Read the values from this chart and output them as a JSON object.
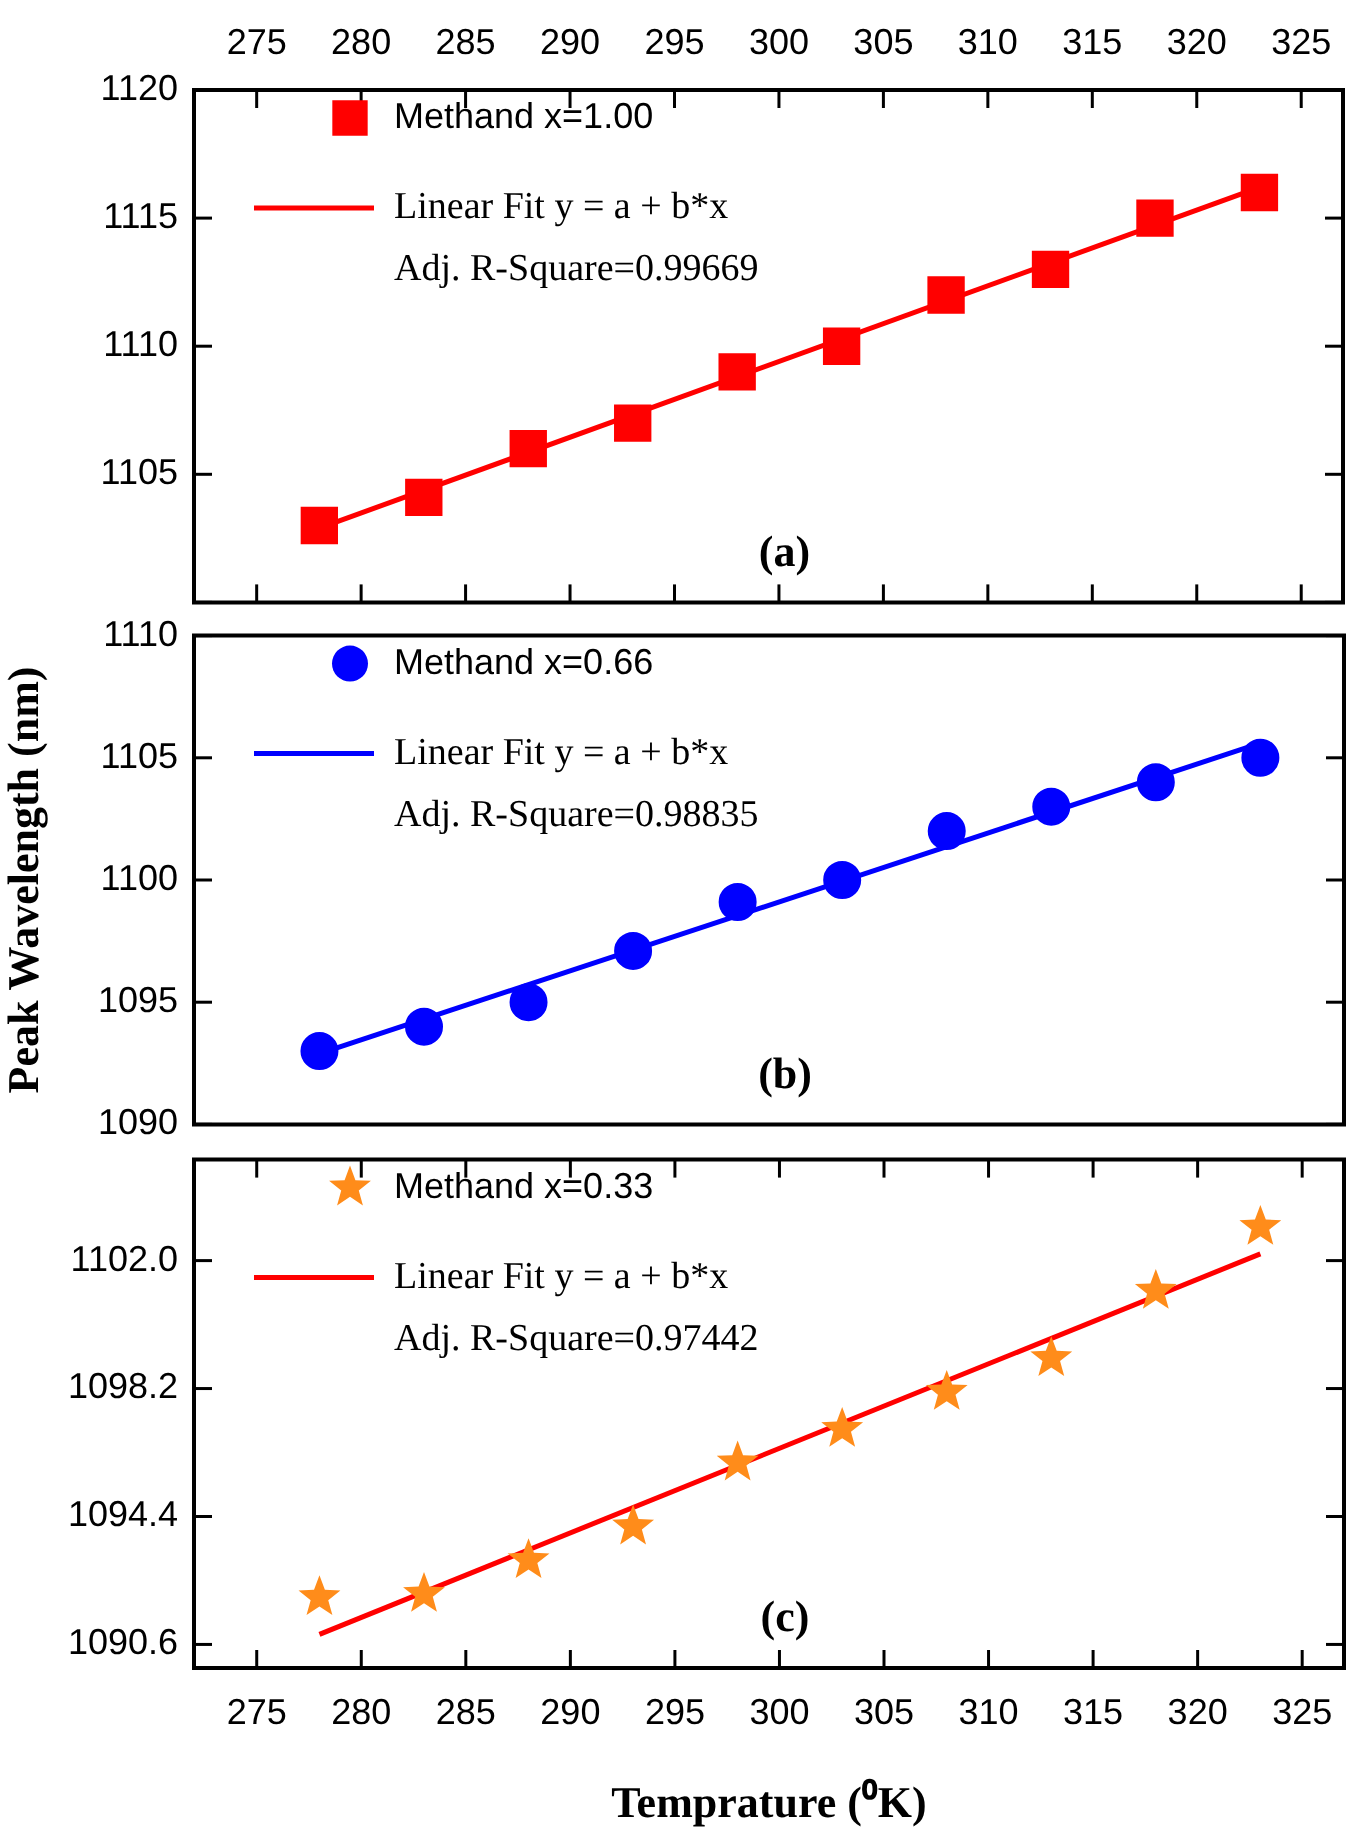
{
  "chart_data": [
    {
      "type": "scatter",
      "legend": "top left",
      "tick_labels": "y",
      "xlim": [
        272,
        327
      ],
      "x2lim": [
        272,
        327
      ],
      "x2ticks": [
        275,
        280,
        285,
        290,
        295,
        300,
        305,
        310,
        315,
        320,
        325
      ],
      "ylim": [
        1100,
        1120
      ],
      "yticks": [
        {
          "value": 1100,
          "label": null
        },
        1105,
        1110,
        1115,
        1120
      ],
      "series": [
        {
          "name": "Methand x=1.00",
          "type": "scatter",
          "marker": "square",
          "color": "#ff0000",
          "x": [
            278,
            283,
            288,
            293,
            298,
            303,
            308,
            313,
            318,
            323
          ],
          "values": [
            1103,
            1104.1,
            1106,
            1107,
            1109,
            1110,
            1112,
            1113,
            1115,
            1116
          ]
        },
        {
          "name": "Linear Fit y = a + b*x",
          "type": "line",
          "marker": "none",
          "color": "#ff0000",
          "x": [
            278,
            323
          ],
          "values": [
            1102.9,
            1116.2
          ]
        }
      ],
      "annotations": [
        "Adj. R-Square=0.99669",
        "(a)"
      ]
    },
    {
      "type": "scatter",
      "legend": "top left",
      "tick_labels": "y",
      "ylabel": "Peak Wavelength (nm)",
      "xlim": [
        272,
        327
      ],
      "ylim": [
        1090,
        1110
      ],
      "yticks": [
        1090,
        1095,
        1100,
        1105,
        1110
      ],
      "series": [
        {
          "name": "Methand x=0.66",
          "type": "scatter",
          "marker": "circle",
          "color": "#0000ff",
          "x": [
            278,
            283,
            288,
            293,
            298,
            303,
            308,
            313,
            318,
            323
          ],
          "values": [
            1093,
            1094,
            1095,
            1097.1,
            1099.1,
            1100,
            1102,
            1103,
            1104,
            1105
          ]
        },
        {
          "name": "Linear Fit y = a + b*x",
          "type": "line",
          "marker": "none",
          "color": "#0000ff",
          "x": [
            278,
            323
          ],
          "values": [
            1092.9,
            1105.6
          ]
        }
      ],
      "annotations": [
        "Adj. R-Square=0.98835",
        "(b)"
      ]
    },
    {
      "type": "scatter",
      "legend": "top left",
      "xlabel": "Temprature (⁰K)",
      "xlim": [
        272,
        327
      ],
      "xticks": [
        275,
        280,
        285,
        290,
        295,
        300,
        305,
        310,
        315,
        320,
        325
      ],
      "ylim": [
        1089.9,
        1105.0
      ],
      "yticks": [
        1090.6,
        1094.4,
        1098.2,
        {
          "value": 1102.0,
          "label": "1102.0"
        }
      ],
      "series": [
        {
          "name": "Methand x=0.33",
          "type": "scatter",
          "marker": "star",
          "color": "#ff8c1a",
          "x": [
            278,
            283,
            288,
            293,
            298,
            303,
            308,
            313,
            318,
            323
          ],
          "values": [
            1092,
            1092.1,
            1093.1,
            1094.1,
            1096,
            1097,
            1098.1,
            1099.1,
            1101.1,
            1103
          ]
        },
        {
          "name": "Linear Fit y = a + b*x",
          "type": "line",
          "marker": "none",
          "color": "#ff0000",
          "x": [
            278,
            323
          ],
          "values": [
            1090.9,
            1102.2
          ]
        }
      ],
      "annotations": [
        "Adj. R-Square=0.97442",
        "(c)"
      ]
    }
  ]
}
